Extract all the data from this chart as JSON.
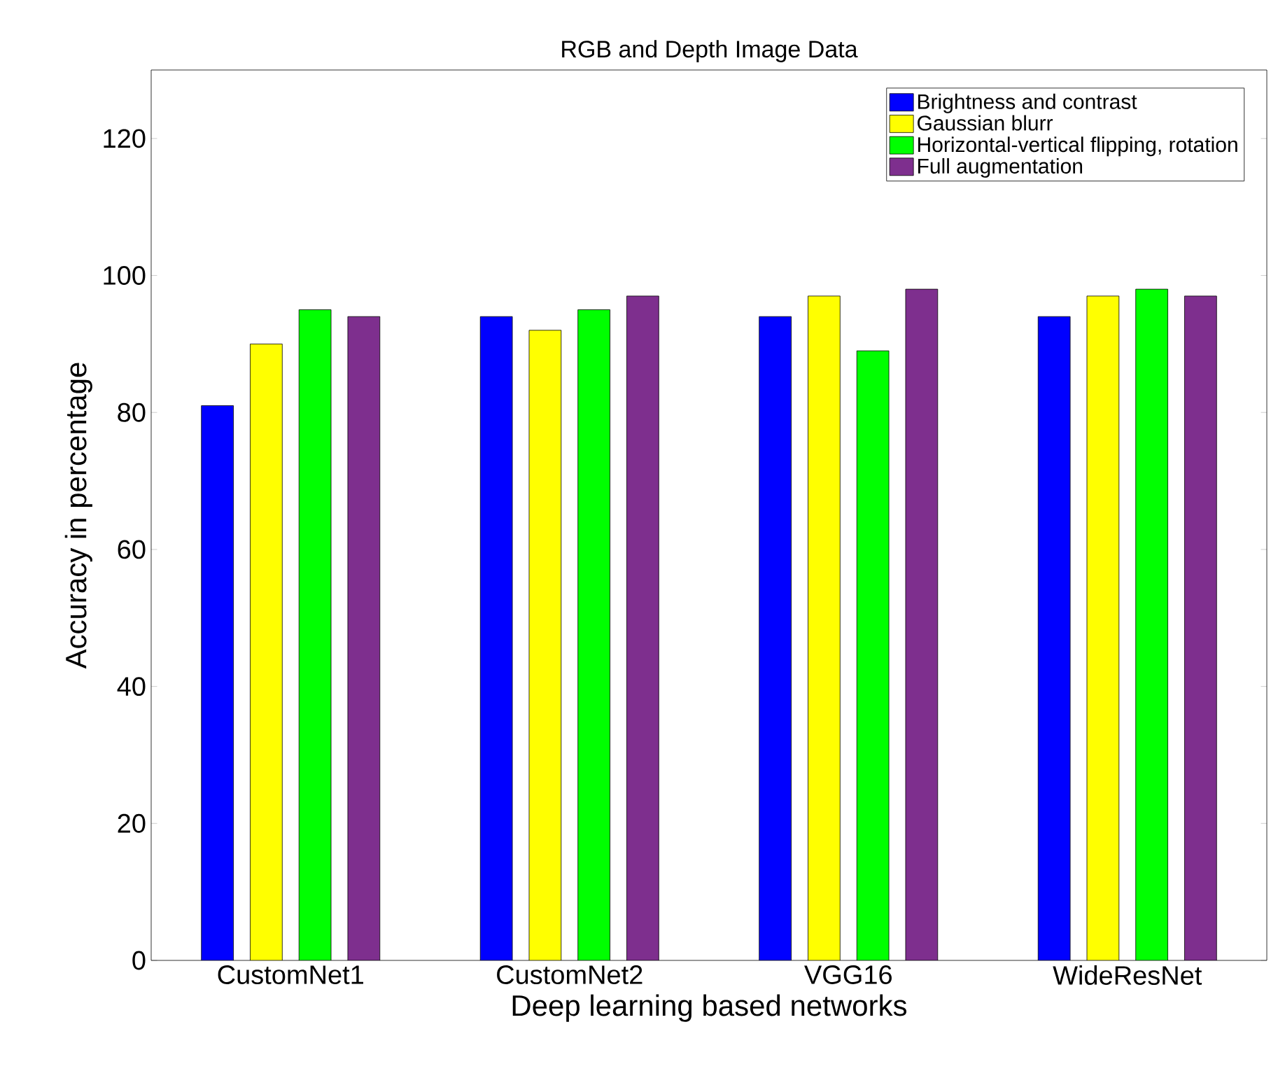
{
  "chart_data": {
    "type": "bar",
    "title": "RGB and Depth Image Data",
    "xlabel": "Deep learning based networks",
    "ylabel": "Accuracy in percentage",
    "categories": [
      "CustomNet1",
      "CustomNet2",
      "VGG16",
      "WideResNet"
    ],
    "series": [
      {
        "name": "Brightness and contrast",
        "color": "#0000ff",
        "values": [
          81,
          94,
          94,
          94
        ]
      },
      {
        "name": "Gaussian blurr",
        "color": "#ffff00",
        "values": [
          90,
          92,
          97,
          97
        ]
      },
      {
        "name": "Horizontal-vertical flipping, rotation",
        "color": "#00ff00",
        "values": [
          95,
          95,
          89,
          98
        ]
      },
      {
        "name": "Full augmentation",
        "color": "#7e2f8e",
        "values": [
          94,
          97,
          98,
          97
        ]
      }
    ],
    "ylim": [
      0,
      130
    ],
    "yticks": [
      0,
      20,
      40,
      60,
      80,
      100,
      120
    ],
    "legend": "top right",
    "grid": false
  }
}
